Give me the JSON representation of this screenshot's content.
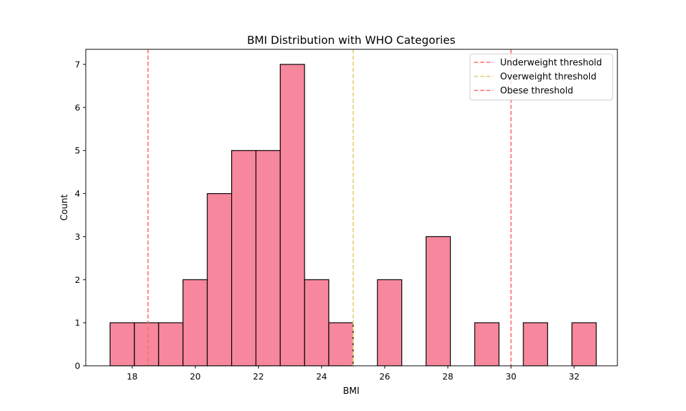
{
  "chart_data": {
    "type": "bar",
    "title": "BMI Distribution with WHO Categories",
    "xlabel": "BMI",
    "ylabel": "Count",
    "xlim": [
      16.53,
      33.37
    ],
    "ylim": [
      0,
      7.35
    ],
    "xticks": [
      18,
      20,
      22,
      24,
      26,
      28,
      30,
      32
    ],
    "yticks": [
      0,
      1,
      2,
      3,
      4,
      5,
      6,
      7
    ],
    "bin_edges": [
      17.3,
      18.07,
      18.84,
      19.61,
      20.38,
      21.15,
      21.92,
      22.69,
      23.46,
      24.23,
      25.0,
      25.77,
      26.54,
      27.31,
      28.08,
      28.85,
      29.62,
      30.39,
      31.16,
      31.93,
      32.7
    ],
    "counts": [
      1,
      1,
      1,
      2,
      4,
      5,
      5,
      7,
      2,
      1,
      0,
      2,
      0,
      3,
      0,
      1,
      0,
      1,
      0,
      1
    ],
    "bar_color": "#f7879c",
    "edge_color": "#000000",
    "grid": false,
    "legend_position": "top-right",
    "thresholds": [
      {
        "name": "Underweight threshold",
        "value": 18.5,
        "color": "#ff6b6b"
      },
      {
        "name": "Overweight threshold",
        "value": 25.0,
        "color": "#dfcf6f"
      },
      {
        "name": "Obese threshold",
        "value": 30.0,
        "color": "#ff6b6b"
      }
    ]
  }
}
